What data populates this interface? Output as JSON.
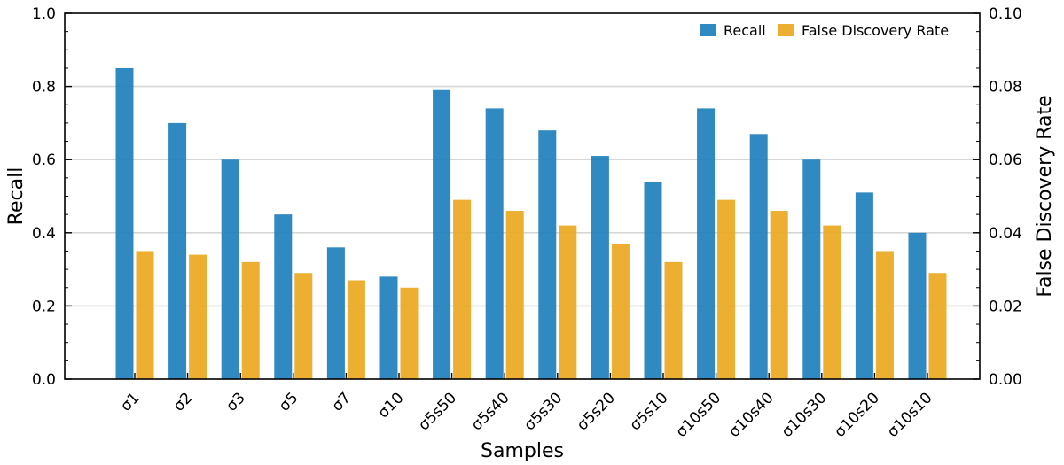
{
  "chart_data": {
    "type": "bar",
    "xlabel": "Samples",
    "ylabel_left": "Recall",
    "ylabel_right": "False Discovery Rate",
    "ylim_left": [
      0,
      1.0
    ],
    "ylim_right": [
      0,
      0.1
    ],
    "yticks_left": [
      "0.0",
      "0.2",
      "0.4",
      "0.6",
      "0.8",
      "1.0"
    ],
    "yticks_right": [
      "0.00",
      "0.02",
      "0.04",
      "0.06",
      "0.08",
      "0.10"
    ],
    "grid": "horizontal",
    "legend_position": "top-right",
    "categories": [
      "σ1",
      "σ2",
      "σ3",
      "σ5",
      "σ7",
      "σ10",
      "σ5s50",
      "σ5s40",
      "σ5s30",
      "σ5s20",
      "σ5s10",
      "σ10s50",
      "σ10s40",
      "σ10s30",
      "σ10s20",
      "σ10s10"
    ],
    "series": [
      {
        "name": "Recall",
        "axis": "left",
        "color": "#1f7fbc",
        "values": [
          0.85,
          0.7,
          0.6,
          0.45,
          0.36,
          0.28,
          0.79,
          0.74,
          0.68,
          0.61,
          0.54,
          0.74,
          0.67,
          0.6,
          0.51,
          0.4
        ]
      },
      {
        "name": "False Discovery Rate",
        "axis": "right",
        "color": "#eaa821",
        "values": [
          0.035,
          0.034,
          0.032,
          0.029,
          0.027,
          0.025,
          0.049,
          0.046,
          0.042,
          0.037,
          0.032,
          0.049,
          0.046,
          0.042,
          0.035,
          0.029
        ]
      }
    ]
  }
}
